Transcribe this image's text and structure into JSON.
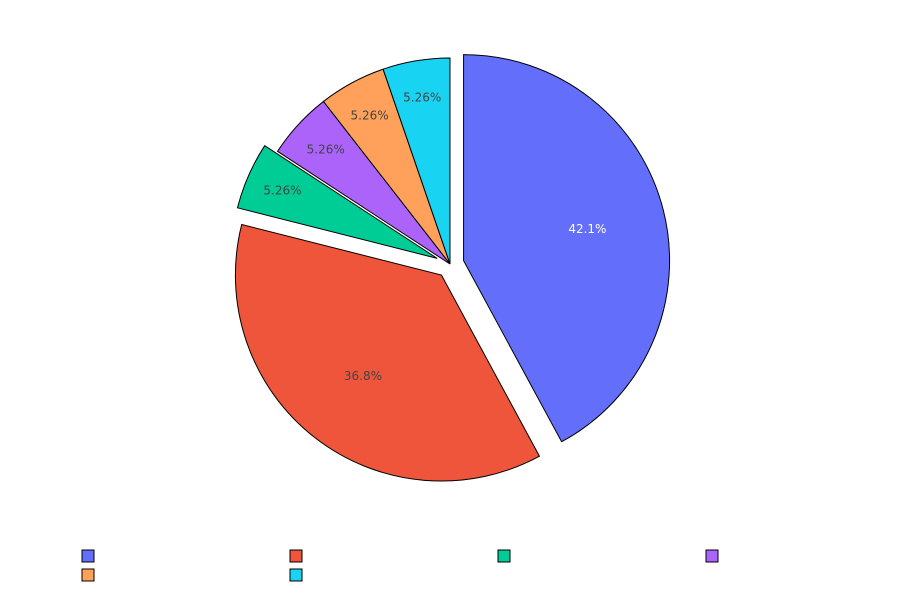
{
  "chart_data": {
    "type": "pie",
    "title": "",
    "slices": [
      {
        "label": "",
        "value": 8,
        "percent_label": "42.1%",
        "color": "#636efa",
        "text_color": "#ffffff",
        "pulled": true
      },
      {
        "label": "",
        "value": 7,
        "percent_label": "36.8%",
        "color": "#ef553b",
        "text_color": "#444444",
        "pulled": true
      },
      {
        "label": "",
        "value": 1,
        "percent_label": "5.26%",
        "color": "#00cc96",
        "text_color": "#444444",
        "pulled": true
      },
      {
        "label": "",
        "value": 1,
        "percent_label": "5.26%",
        "color": "#ab63fa",
        "text_color": "#444444",
        "pulled": false
      },
      {
        "label": "",
        "value": 1,
        "percent_label": "5.26%",
        "color": "#ffa15a",
        "text_color": "#444444",
        "pulled": false
      },
      {
        "label": "",
        "value": 1,
        "percent_label": "5.26%",
        "color": "#19d3f3",
        "text_color": "#444444",
        "pulled": false
      }
    ],
    "direction": "clockwise",
    "start": "top",
    "legend": {
      "position": "bottom",
      "orientation": "horizontal"
    }
  }
}
